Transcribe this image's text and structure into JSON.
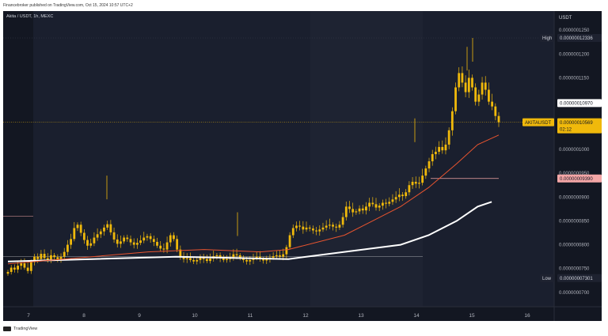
{
  "header": {
    "published": "Financebroker published on TradingView.com, Oct 15, 2024 10:57 UTC+2"
  },
  "footer": {
    "brand": "TradingView",
    "logo_icon": "tradingview-logo-icon"
  },
  "chart_data": {
    "type": "candlestick",
    "title": "Akita / USDT, 1h, MEXC",
    "currency": "USDT",
    "symbol_label": "AKITAUSDT",
    "countdown": "02:12",
    "x_ticks": [
      "7",
      "8",
      "9",
      "10",
      "11",
      "12",
      "13",
      "14",
      "15",
      "16"
    ],
    "y_ticks": [
      "0.0000001250",
      "0.0000001200",
      "0.0000001150",
      "0.0000001000",
      "0.0000000950",
      "0.0000000900",
      "0.0000000850",
      "0.0000000800",
      "0.0000000750",
      "0.0000000700"
    ],
    "ylim": [
      6.7e-08,
      1.29e-07
    ],
    "price_labels": {
      "high_text": "High",
      "high_value": "0.00000012336",
      "level_white": "0.00000010970",
      "current": "0.00000010569",
      "level_red": "0.00000009390",
      "low_text": "Low",
      "low_value": "0.00000007301"
    },
    "colors": {
      "background": "#131722",
      "candle": "#f0b90b",
      "ema_short": "#e8542f",
      "ema_long": "#ffffff",
      "red_level": "#f4a6a6",
      "price_label": "#f0b90b"
    },
    "closes": [
      7.43e-08,
      7.52e-08,
      7.48e-08,
      7.56e-08,
      7.61e-08,
      7.52e-08,
      7.45e-08,
      7.64e-08,
      7.75e-08,
      7.7e-08,
      7.81e-08,
      7.72e-08,
      7.69e-08,
      7.78e-08,
      7.74e-08,
      7.68e-08,
      7.75e-08,
      7.85e-08,
      8e-08,
      8.12e-08,
      8.35e-08,
      8.42e-08,
      8.25e-08,
      8.1e-08,
      7.98e-08,
      8.03e-08,
      8.15e-08,
      8.22e-08,
      8.28e-08,
      8.36e-08,
      8.43e-08,
      8.26e-08,
      8.11e-08,
      8.02e-08,
      8.07e-08,
      8.15e-08,
      8.12e-08,
      8.05e-08,
      8e-08,
      8.04e-08,
      8.09e-08,
      8.15e-08,
      8.18e-08,
      8.12e-08,
      8.06e-08,
      7.98e-08,
      7.92e-08,
      7.9e-08,
      8.05e-08,
      8.2e-08,
      8.12e-08,
      7.9e-08,
      7.75e-08,
      7.7e-08,
      7.72e-08,
      7.68e-08,
      7.65e-08,
      7.68e-08,
      7.73e-08,
      7.7e-08,
      7.66e-08,
      7.71e-08,
      7.76e-08,
      7.78e-08,
      7.72e-08,
      7.68e-08,
      7.7e-08,
      7.74e-08,
      7.8e-08,
      7.78e-08,
      7.72e-08,
      7.68e-08,
      7.65e-08,
      7.68e-08,
      7.72e-08,
      7.75e-08,
      7.7e-08,
      7.67e-08,
      7.71e-08,
      7.73e-08,
      7.76e-08,
      7.78e-08,
      7.75e-08,
      7.8e-08,
      7.95e-08,
      8.2e-08,
      8.35e-08,
      8.4e-08,
      8.38e-08,
      8.32e-08,
      8.36e-08,
      8.34e-08,
      8.3e-08,
      8.28e-08,
      8.32e-08,
      8.36e-08,
      8.4e-08,
      8.42e-08,
      8.38e-08,
      8.36e-08,
      8.42e-08,
      8.58e-08,
      8.8e-08,
      8.75e-08,
      8.68e-08,
      8.7e-08,
      8.76e-08,
      8.72e-08,
      8.8e-08,
      8.88e-08,
      8.85e-08,
      8.78e-08,
      8.82e-08,
      8.88e-08,
      8.86e-08,
      8.9e-08,
      8.95e-08,
      9e-08,
      9.05e-08,
      9.02e-08,
      9.1e-08,
      9.25e-08,
      9.32e-08,
      9.28e-08,
      9.3e-08,
      9.45e-08,
      9.6e-08,
      9.75e-08,
      9.9e-08,
      9.95e-08,
      1.005e-07,
      9.98e-08,
      1.01e-07,
      1.04e-07,
      1.08e-07,
      1.13e-07,
      1.16e-07,
      1.14e-07,
      1.12e-07,
      1.15e-07,
      1.13e-07,
      1.1e-07,
      1.115e-07,
      1.14e-07,
      1.125e-07,
      1.1e-07,
      1.09e-07,
      1.07e-07,
      1.057e-07
    ],
    "ema_short_points": [
      [
        7.6e-08,
        0
      ],
      [
        7.65e-08,
        20
      ],
      [
        7.75e-08,
        60
      ],
      [
        7.85e-08,
        100
      ],
      [
        7.9e-08,
        140
      ],
      [
        7.85e-08,
        180
      ],
      [
        7.9e-08,
        200
      ],
      [
        8.2e-08,
        240
      ],
      [
        8.5e-08,
        260
      ],
      [
        8.8e-08,
        280
      ],
      [
        9.2e-08,
        300
      ],
      [
        9.7e-08,
        320
      ],
      [
        1.01e-07,
        335
      ],
      [
        1.03e-07,
        350
      ]
    ],
    "ema_long_points": [
      [
        7.65e-08,
        0
      ],
      [
        7.7e-08,
        60
      ],
      [
        7.75e-08,
        120
      ],
      [
        7.7e-08,
        200
      ],
      [
        7.85e-08,
        240
      ],
      [
        8e-08,
        280
      ],
      [
        8.2e-08,
        300
      ],
      [
        8.5e-08,
        320
      ],
      [
        8.8e-08,
        335
      ],
      [
        8.9e-08,
        345
      ]
    ]
  }
}
